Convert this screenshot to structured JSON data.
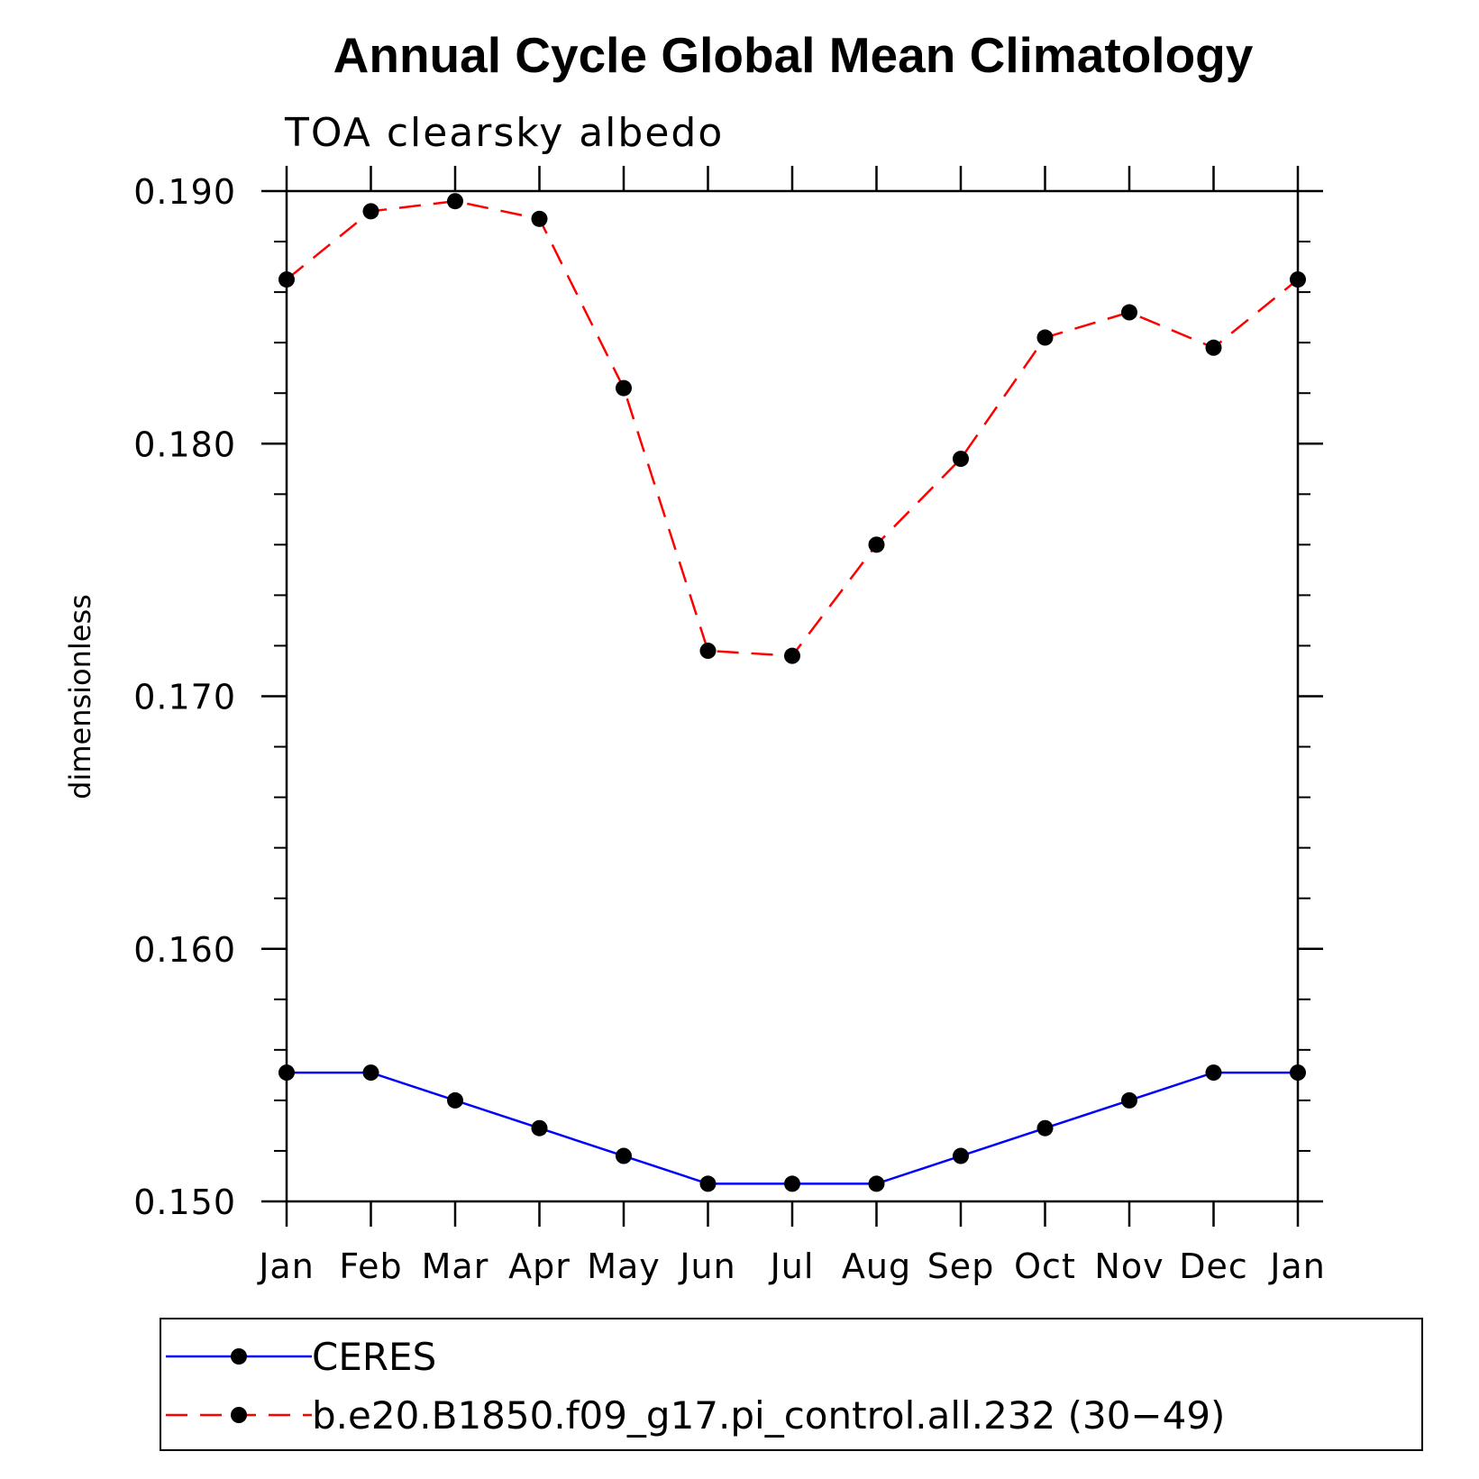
{
  "chart_data": {
    "type": "line",
    "title": "Annual Cycle Global Mean Climatology",
    "subtitle": "TOA clearsky albedo",
    "xlabel": "",
    "ylabel": "dimensionless",
    "categories": [
      "Jan",
      "Feb",
      "Mar",
      "Apr",
      "May",
      "Jun",
      "Jul",
      "Aug",
      "Sep",
      "Oct",
      "Nov",
      "Dec",
      "Jan"
    ],
    "ylim": [
      0.15,
      0.19
    ],
    "yticks": [
      "0.150",
      "0.160",
      "0.170",
      "0.180",
      "0.190"
    ],
    "yticks_values": [
      0.15,
      0.16,
      0.17,
      0.18,
      0.19
    ],
    "grid": false,
    "legend_position": "bottom",
    "series": [
      {
        "name": "CERES",
        "color": "#0000ff",
        "style": "solid",
        "marker": "filled-circle",
        "values": [
          0.1551,
          0.1551,
          0.154,
          0.1529,
          0.1518,
          0.1507,
          0.1507,
          0.1507,
          0.1518,
          0.1529,
          0.154,
          0.1551,
          0.1551
        ]
      },
      {
        "name": "b.e20.B1850.f09_g17.pi_control.all.232 (30−49)",
        "color": "#ff0000",
        "style": "dashed",
        "marker": "filled-circle",
        "values": [
          0.1865,
          0.1892,
          0.1896,
          0.1889,
          0.1822,
          0.1718,
          0.1716,
          0.176,
          0.1794,
          0.1842,
          0.1852,
          0.1838,
          0.1865
        ]
      }
    ]
  }
}
